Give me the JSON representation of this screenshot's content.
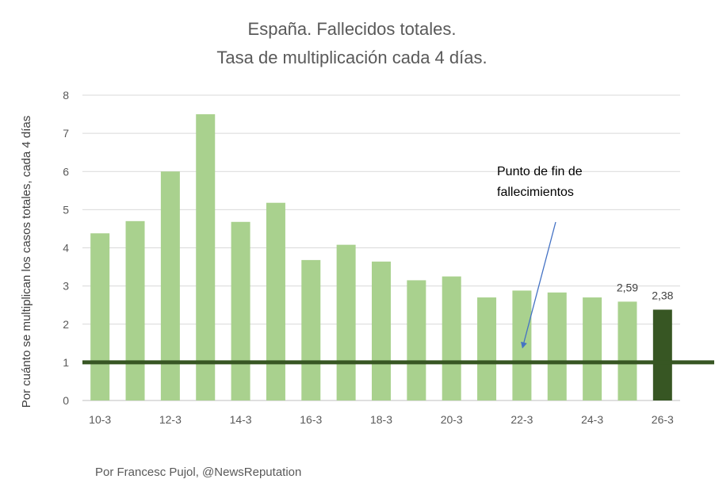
{
  "chart_data": {
    "type": "bar",
    "title_lines": [
      "España. Fallecidos totales.",
      "Tasa de multiplicación cada 4 días."
    ],
    "ylabel": "Por cuánto se multiplican los casos totales, cada 4 días",
    "xlabel": "",
    "ylim": [
      0,
      8
    ],
    "yticks": [
      0,
      1,
      2,
      3,
      4,
      5,
      6,
      7,
      8
    ],
    "grid": true,
    "categories": [
      "10-3",
      "11-3",
      "12-3",
      "13-3",
      "14-3",
      "15-3",
      "16-3",
      "17-3",
      "18-3",
      "19-3",
      "20-3",
      "21-3",
      "22-3",
      "23-3",
      "24-3",
      "25-3",
      "26-3"
    ],
    "tick_labels": [
      "10-3",
      "",
      "12-3",
      "",
      "14-3",
      "",
      "16-3",
      "",
      "18-3",
      "",
      "20-3",
      "",
      "22-3",
      "",
      "24-3",
      "",
      "26-3"
    ],
    "values": [
      4.38,
      4.7,
      6.0,
      7.5,
      4.68,
      5.18,
      3.68,
      4.08,
      3.64,
      3.15,
      3.25,
      2.7,
      2.88,
      2.83,
      2.7,
      2.59,
      2.38
    ],
    "data_labels": [
      {
        "index": 15,
        "text": "2,59"
      },
      {
        "index": 16,
        "text": "2,38"
      }
    ],
    "bar_color": "#a9d18e",
    "highlight_index": 16,
    "highlight_color": "#375623",
    "reference_line": {
      "value": 1,
      "color": "#375623"
    },
    "annotation": {
      "lines": [
        "Punto de fin de",
        "fallecimientos"
      ],
      "arrow_color": "#4472c4",
      "arrow_target": {
        "x": "22-3",
        "y": 1.4
      }
    }
  },
  "credit": "Por Francesc Pujol, @NewsReputation"
}
